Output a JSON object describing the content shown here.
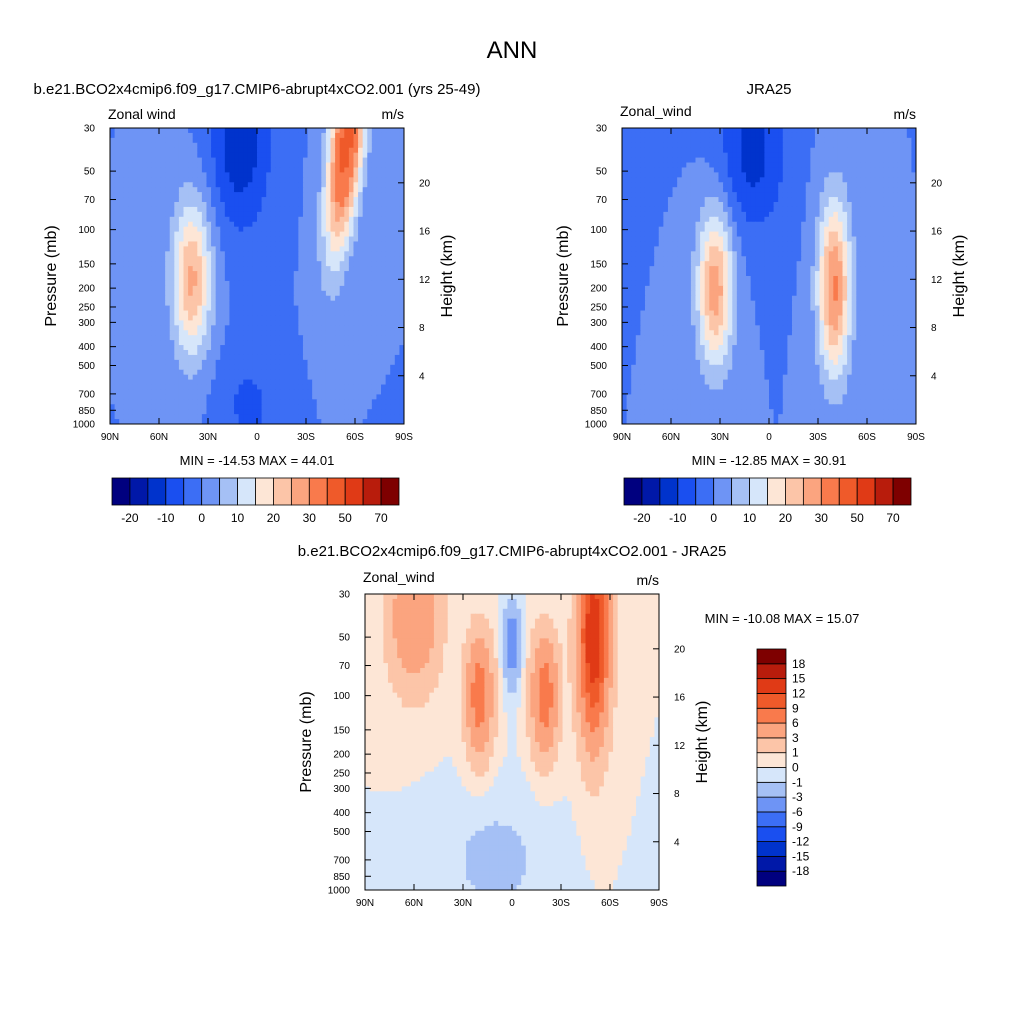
{
  "page_title": "ANN",
  "chart_data": [
    {
      "type": "heatmap",
      "title": "b.e21.BCO2x4cmip6.f09_g17.CMIP6-abrupt4xCO2.001 (yrs 25-49)",
      "variable_label": "Zonal wind",
      "units_label": "m/s",
      "ylabel": "Pressure (mb)",
      "ylabel_right": "Height (km)",
      "x_ticks": [
        "90N",
        "60N",
        "30N",
        "0",
        "30S",
        "60S",
        "90S"
      ],
      "x_values": [
        90,
        60,
        30,
        0,
        -30,
        -60,
        -90
      ],
      "y_ticks": [
        30,
        50,
        70,
        100,
        150,
        200,
        250,
        300,
        400,
        500,
        700,
        850,
        1000
      ],
      "y_right_ticks": [
        4,
        8,
        12,
        16,
        20
      ],
      "ylim": [
        1000,
        30
      ],
      "y_scale": "log",
      "stats": "MIN = -14.53  MAX =  44.01",
      "colorbar": {
        "orientation": "horizontal",
        "levels": [
          -25,
          -20,
          -15,
          -10,
          -5,
          0,
          5,
          10,
          15,
          20,
          25,
          30,
          40,
          50,
          60,
          70
        ],
        "labels": [
          "-20",
          "-10",
          "0",
          "10",
          "20",
          "30",
          "50",
          "70"
        ],
        "colors": [
          "#00007f",
          "#0018a8",
          "#0033cc",
          "#1a4ff0",
          "#3c6ef5",
          "#6e94f5",
          "#a5c0f5",
          "#d6e6fa",
          "#fde6d6",
          "#fcc5a8",
          "#fba47f",
          "#f97a4c",
          "#ef5a2a",
          "#e03a16",
          "#b81c0c",
          "#7e0000"
        ]
      },
      "features": [
        {
          "kind": "jet",
          "lat": -55,
          "p": 35,
          "peak": 44,
          "wlat": 10,
          "wlogp": 0.55,
          "tilt": 12
        },
        {
          "kind": "jet",
          "lat": 40,
          "p": 180,
          "peak": 26,
          "wlat": 12,
          "wlogp": 0.4,
          "tilt": 0
        },
        {
          "kind": "easterly",
          "lat": 10,
          "p": 35,
          "peak": -14,
          "wlat": 18,
          "wlogp": 0.45,
          "tilt": 0
        },
        {
          "kind": "easterly",
          "lat": 5,
          "p": 800,
          "peak": -6,
          "wlat": 20,
          "wlogp": 0.3,
          "tilt": 0
        }
      ]
    },
    {
      "type": "heatmap",
      "title": "JRA25",
      "variable_label": "Zonal_wind",
      "units_label": "m/s",
      "ylabel": "Pressure (mb)",
      "ylabel_right": "Height (km)",
      "x_ticks": [
        "90N",
        "60N",
        "30N",
        "0",
        "30S",
        "60S",
        "90S"
      ],
      "x_values": [
        90,
        60,
        30,
        0,
        -30,
        -60,
        -90
      ],
      "y_ticks": [
        30,
        50,
        70,
        100,
        150,
        200,
        250,
        300,
        400,
        500,
        700,
        850,
        1000
      ],
      "y_right_ticks": [
        4,
        8,
        12,
        16,
        20
      ],
      "ylim": [
        1000,
        30
      ],
      "y_scale": "log",
      "stats": "MIN = -12.85  MAX =  30.91",
      "colorbar": {
        "orientation": "horizontal",
        "levels": [
          -25,
          -20,
          -15,
          -10,
          -5,
          0,
          5,
          10,
          15,
          20,
          25,
          30,
          40,
          50,
          60,
          70
        ],
        "labels": [
          "-20",
          "-10",
          "0",
          "10",
          "20",
          "30",
          "50",
          "70"
        ],
        "colors": [
          "#00007f",
          "#0018a8",
          "#0033cc",
          "#1a4ff0",
          "#3c6ef5",
          "#6e94f5",
          "#a5c0f5",
          "#d6e6fa",
          "#fde6d6",
          "#fcc5a8",
          "#fba47f",
          "#f97a4c",
          "#ef5a2a",
          "#e03a16",
          "#b81c0c",
          "#7e0000"
        ]
      },
      "features": [
        {
          "kind": "jet",
          "lat": -40,
          "p": 200,
          "peak": 31,
          "wlat": 10,
          "wlogp": 0.45,
          "tilt": 0
        },
        {
          "kind": "jet",
          "lat": 33,
          "p": 200,
          "peak": 28,
          "wlat": 11,
          "wlogp": 0.4,
          "tilt": 0
        },
        {
          "kind": "easterly",
          "lat": 10,
          "p": 40,
          "peak": -12,
          "wlat": 20,
          "wlogp": 0.4,
          "tilt": 0
        }
      ]
    },
    {
      "type": "heatmap",
      "title": "b.e21.BCO2x4cmip6.f09_g17.CMIP6-abrupt4xCO2.001 - JRA25",
      "variable_label": "Zonal_wind",
      "units_label": "m/s",
      "ylabel": "Pressure (mb)",
      "ylabel_right": "Height (km)",
      "x_ticks": [
        "90N",
        "60N",
        "30N",
        "0",
        "30S",
        "60S",
        "90S"
      ],
      "x_values": [
        90,
        60,
        30,
        0,
        -30,
        -60,
        -90
      ],
      "y_ticks": [
        30,
        50,
        70,
        100,
        150,
        200,
        250,
        300,
        400,
        500,
        700,
        850,
        1000
      ],
      "y_right_ticks": [
        4,
        8,
        12,
        16,
        20
      ],
      "ylim": [
        1000,
        30
      ],
      "y_scale": "log",
      "stats": "MIN = -10.08  MAX =  15.07",
      "colorbar": {
        "orientation": "vertical",
        "levels": [
          -21,
          -18,
          -15,
          -12,
          -9,
          -6,
          -3,
          -1,
          0,
          1,
          3,
          6,
          9,
          12,
          15,
          18,
          21
        ],
        "labels": [
          "-18",
          "-15",
          "-12",
          "-9",
          "-6",
          "-3",
          "-1",
          "0",
          "1",
          "3",
          "6",
          "9",
          "12",
          "15",
          "18"
        ],
        "colors": [
          "#00007f",
          "#0018a8",
          "#0033cc",
          "#1a4ff0",
          "#3c6ef5",
          "#6e94f5",
          "#a5c0f5",
          "#d6e6fa",
          "#fde6d6",
          "#fcc5a8",
          "#fba47f",
          "#f97a4c",
          "#ef5a2a",
          "#e03a16",
          "#b81c0c",
          "#7e0000"
        ]
      },
      "features": [
        {
          "kind": "jet",
          "lat": -50,
          "p": 50,
          "peak": 15,
          "wlat": 9,
          "wlogp": 0.5,
          "tilt": 0
        },
        {
          "kind": "jet",
          "lat": -20,
          "p": 100,
          "peak": 8,
          "wlat": 8,
          "wlogp": 0.3,
          "tilt": 0
        },
        {
          "kind": "jet",
          "lat": 20,
          "p": 100,
          "peak": 8,
          "wlat": 8,
          "wlogp": 0.3,
          "tilt": 0
        },
        {
          "kind": "jet",
          "lat": 60,
          "p": 40,
          "peak": 6,
          "wlat": 15,
          "wlogp": 0.35,
          "tilt": 0
        },
        {
          "kind": "easterly",
          "lat": 0,
          "p": 55,
          "peak": -5,
          "wlat": 5,
          "wlogp": 0.2,
          "tilt": 0
        },
        {
          "kind": "easterly",
          "lat": 10,
          "p": 700,
          "peak": -1.5,
          "wlat": 30,
          "wlogp": 0.3,
          "tilt": 0
        }
      ]
    }
  ]
}
